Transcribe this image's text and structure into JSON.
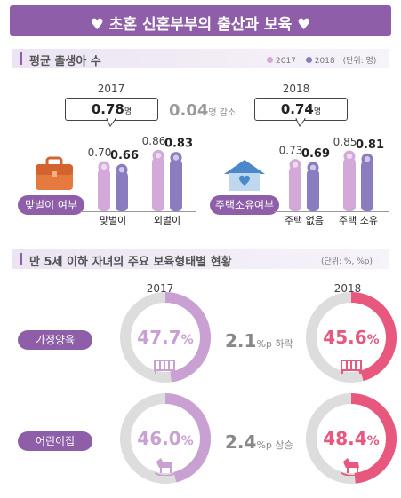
{
  "title": "♥ 초혼 신혼부부의 출산과 보육 ♥",
  "section1": {
    "title": "평균 출생아 수",
    "legend": [
      {
        "label": "2017",
        "color": "#d3a9d9"
      },
      {
        "label": "2018",
        "color": "#8b7bbf"
      }
    ],
    "unit": "(단위: 명)",
    "year_left": "2017",
    "year_right": "2018",
    "avg_2017": "0.78",
    "avg_2018": "0.74",
    "avg_unit": "명",
    "diff": "0.04",
    "diff_unit": "명 감소",
    "label_left": "맞벌이 여부",
    "label_right": "주택소유여부"
  },
  "section2": {
    "title": "만 5세 이하 자녀의 주요 보육형태별 현황",
    "unit": "(단위: %, %p)",
    "year_left": "2017",
    "year_right": "2018",
    "rows": [
      {
        "label": "가정양육",
        "v2017": "47.7",
        "v2018": "45.6",
        "change": "2.1",
        "change_unit": "%p 하락"
      },
      {
        "label": "어린이집",
        "v2017": "46.0",
        "v2018": "48.4",
        "change": "2.4",
        "change_unit": "%p 상승"
      }
    ],
    "pct_unit": "%"
  },
  "colors": {
    "purple": "#8e5fa8",
    "light": "#c9a0d2",
    "pink": "#e8577e",
    "gray": "#dddddd"
  },
  "chart_data": [
    {
      "type": "bar",
      "categories": [
        "맞벌이",
        "외벌이",
        "주택 없음",
        "주택 소유"
      ],
      "series": [
        {
          "name": "2017",
          "values": [
            0.7,
            0.86,
            0.73,
            0.85
          ]
        },
        {
          "name": "2018",
          "values": [
            0.66,
            0.83,
            0.69,
            0.81
          ]
        }
      ],
      "value_labels": {
        "2017": [
          "0.70",
          "0.86",
          "0.73",
          "0.85"
        ],
        "2018": [
          "0.66",
          "0.83",
          "0.69",
          "0.81"
        ]
      }
    },
    {
      "type": "pie",
      "categories": [
        "가정양육 2017",
        "가정양육 2018",
        "어린이집 2017",
        "어린이집 2018"
      ],
      "values": [
        47.7,
        45.6,
        46.0,
        48.4
      ]
    }
  ]
}
